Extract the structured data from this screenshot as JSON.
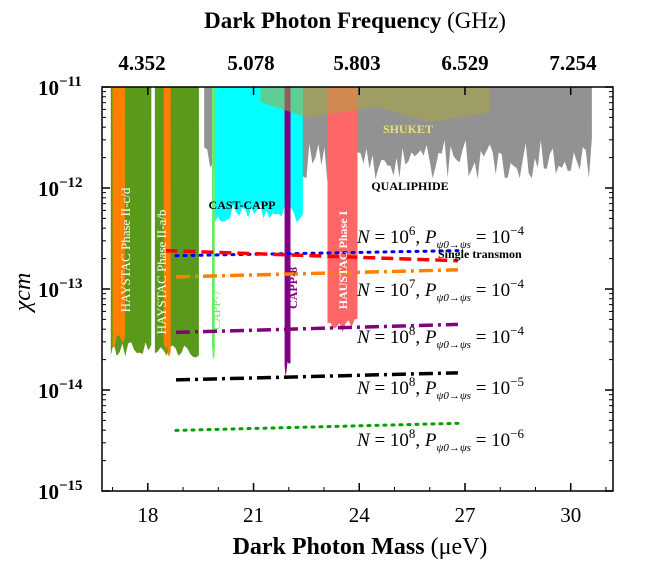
{
  "chart_data": {
    "type": "area",
    "title_top": {
      "bold": "Dark Photon Frequency",
      "unit": " (GHz)"
    },
    "xlabel": {
      "bold": "Dark Photon Mass",
      "unit": " (μeV)"
    },
    "ylabel": "χ",
    "ylabel_sub": "cm",
    "xlim": [
      16.7,
      31.2
    ],
    "ylim_log10": [
      -15,
      -11
    ],
    "x_ticks": [
      18,
      21,
      24,
      27,
      30
    ],
    "x_tick_labels": [
      "18",
      "21",
      "24",
      "27",
      "30"
    ],
    "top_ticks_mass": [
      18,
      21,
      24,
      27,
      30
    ],
    "top_tick_labels": [
      "4.352",
      "5.078",
      "5.803",
      "6.529",
      "7.254"
    ],
    "y_ticks_log10": [
      -11,
      -12,
      -13,
      -14,
      -15
    ],
    "y_tick_bases": [
      "10",
      "10",
      "10",
      "10",
      "10"
    ],
    "y_tick_exps": [
      "−11",
      "−12",
      "−13",
      "−14",
      "−15"
    ],
    "exclusions": [
      {
        "name": "SHUKET",
        "label": "SHUKET",
        "color": "#8c8c8c",
        "label_color": "#e8e070",
        "range": [
          19.6,
          30.6
        ],
        "bottom_log10": -11.72
      },
      {
        "name": "QUALIPHIDE",
        "label": "QUALIPHIDE",
        "color": "#000000"
      },
      {
        "name": "HAYSTAC Phase II-c/d",
        "label": "HAYSTAC Phase II-c/d",
        "color": "#5a9a1a",
        "range": [
          16.95,
          18.1
        ],
        "bottom_log10": -13.6
      },
      {
        "name": "HAYSTAC Phase II-a/b",
        "label": "HAYSTAC Phase II-a/b",
        "color": "#5a9a1a",
        "range": [
          18.2,
          19.45
        ],
        "bottom_log10": -13.6
      },
      {
        "name": "HAYSTAC orange band 1",
        "label": "",
        "color": "#ff8000",
        "range": [
          17.0,
          17.35
        ],
        "bottom_log10": -13.5
      },
      {
        "name": "HAYSTAC orange band 2",
        "label": "",
        "color": "#ff8000",
        "range": [
          18.45,
          18.65
        ],
        "bottom_log10": -13.6
      },
      {
        "name": "CAST-CAPP",
        "label": "CAST-CAPP",
        "color": "#00ffff",
        "range": [
          19.9,
          22.4
        ],
        "bottom_log10": -12.25
      },
      {
        "name": "CAPP-7",
        "label": "CAPP-7",
        "color": "#66ee66",
        "range": [
          19.82,
          19.9
        ],
        "bottom_log10": -13.65
      },
      {
        "name": "CAPP-8",
        "label": "CAPP-8",
        "color": "#800080",
        "range": [
          21.88,
          22.05
        ],
        "bottom_log10": -13.8
      },
      {
        "name": "HAUSTAC Phase I",
        "label": "HAUSTAC Phase I",
        "color": "#ff6666",
        "range": [
          23.1,
          23.95
        ],
        "bottom_log10": -13.35
      }
    ],
    "projections": [
      {
        "name": "N=10^6, P=1e-4",
        "label_N": "10",
        "label_Nexp": "6",
        "label_P": "10",
        "label_Pexp": "−4",
        "color": "#0000ff",
        "dash": "dotted",
        "x": [
          18.8,
          26.8
        ],
        "y_log10": [
          -12.67,
          -12.62
        ]
      },
      {
        "name": "Single transmon",
        "label": "Single transmon",
        "color": "#ff0000",
        "dash": "dashed",
        "x": [
          18.5,
          26.8
        ],
        "y_log10": [
          -12.62,
          -12.72
        ]
      },
      {
        "name": "N=10^7, P=1e-4",
        "label_N": "10",
        "label_Nexp": "7",
        "label_P": "10",
        "label_Pexp": "−4",
        "color": "#ff8000",
        "dash": "dashdot",
        "x": [
          18.8,
          26.8
        ],
        "y_log10": [
          -12.88,
          -12.81
        ]
      },
      {
        "name": "N=10^8, P=1e-4",
        "label_N": "10",
        "label_Nexp": "8",
        "label_P": "10",
        "label_Pexp": "−4",
        "color": "#800080",
        "dash": "dashdot",
        "x": [
          18.8,
          26.8
        ],
        "y_log10": [
          -13.43,
          -13.35
        ]
      },
      {
        "name": "N=10^8, P=1e-5",
        "label_N": "10",
        "label_Nexp": "8",
        "label_P": "10",
        "label_Pexp": "−5",
        "color": "#000000",
        "dash": "dashdot",
        "x": [
          18.8,
          26.8
        ],
        "y_log10": [
          -13.9,
          -13.83
        ]
      },
      {
        "name": "N=10^8, P=1e-6",
        "label_N": "10",
        "label_Nexp": "8",
        "label_P": "10",
        "label_Pexp": "−6",
        "color": "#00a000",
        "dash": "dotted",
        "x": [
          18.8,
          26.8
        ],
        "y_log10": [
          -14.4,
          -14.33
        ]
      }
    ],
    "grid": false
  }
}
